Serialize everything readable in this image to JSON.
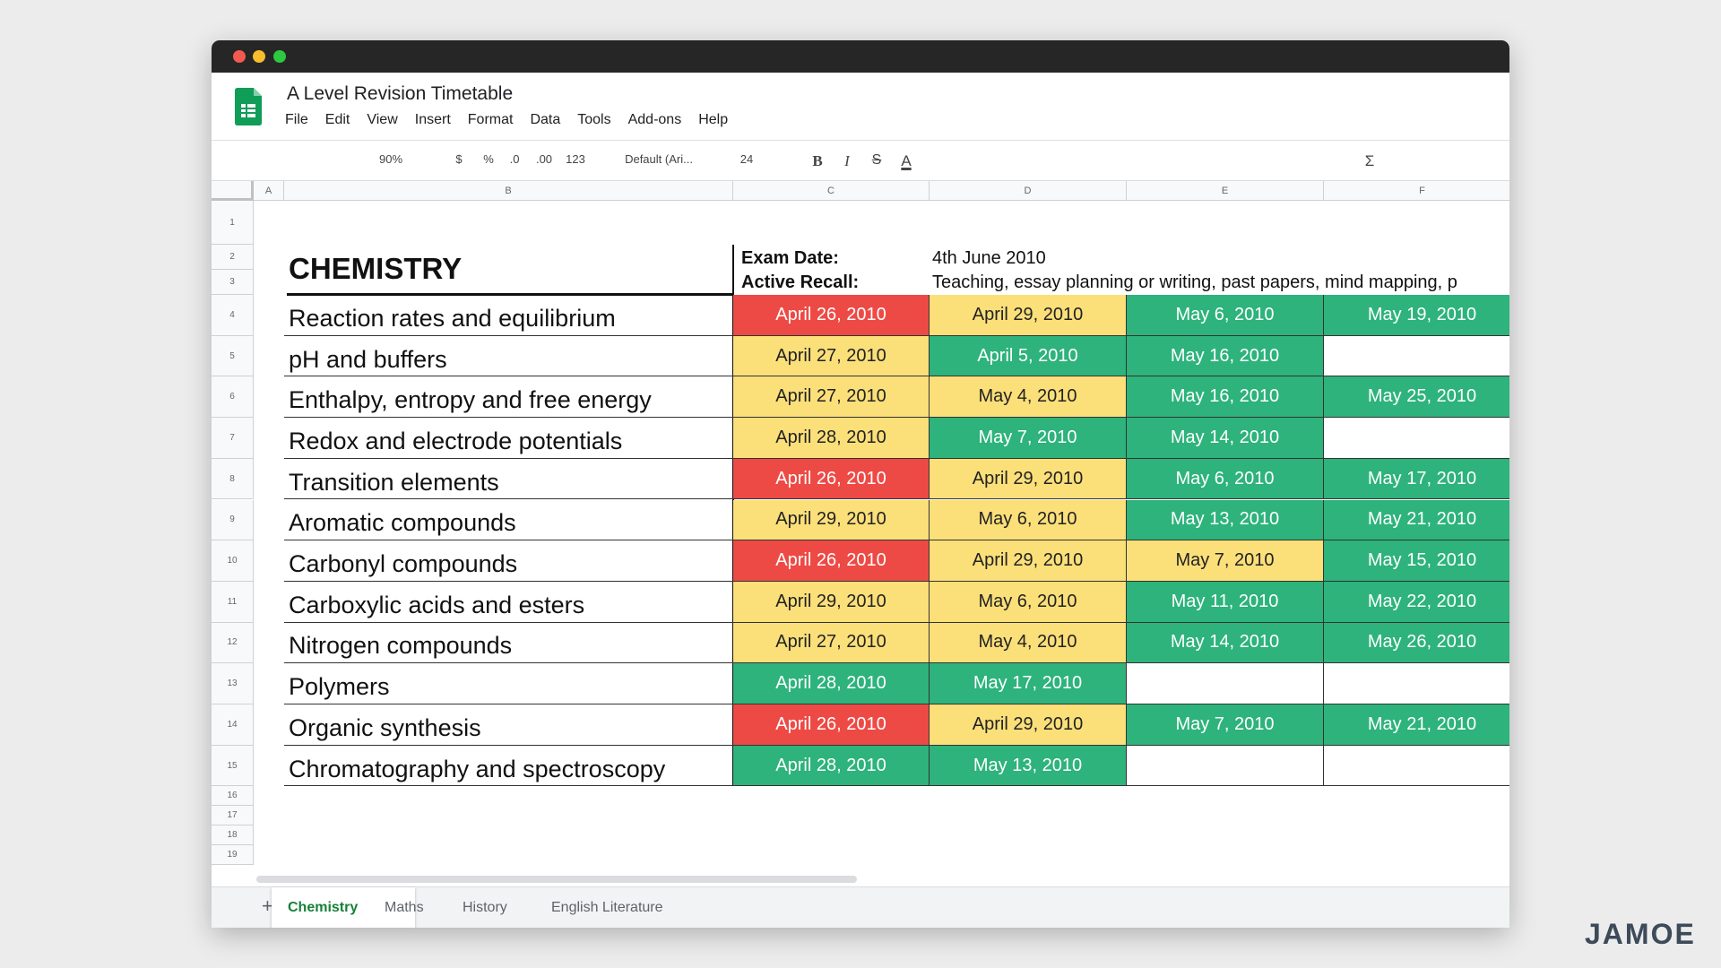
{
  "window": {
    "title": "A Level Revision Timetable",
    "menu": [
      "File",
      "Edit",
      "View",
      "Insert",
      "Format",
      "Data",
      "Tools",
      "Add-ons",
      "Help"
    ],
    "toolbar": [
      "90%",
      "$",
      "%",
      ".0",
      ".00",
      "123",
      "Default (Ari...",
      "24",
      "B",
      "I",
      "S",
      "A",
      "Σ"
    ]
  },
  "sheet": {
    "columns": [
      "A",
      "B",
      "C",
      "D",
      "E",
      "F"
    ],
    "row_numbers": [
      1,
      2,
      3,
      4,
      5,
      6,
      7,
      8,
      9,
      10,
      11,
      12,
      13,
      14,
      15,
      16,
      17,
      18,
      19
    ],
    "heading": "CHEMISTRY",
    "exam_date_label": "Exam Date:",
    "exam_date": "4th June 2010",
    "active_recall_label": "Active Recall:",
    "active_recall": "Teaching, essay planning or writing, past papers, mind mapping, p",
    "topics": [
      {
        "name": "Reaction rates and equilibrium",
        "sessions": [
          {
            "date": "April 26, 2010",
            "color": "#ee4a45"
          },
          {
            "date": "April 29, 2010",
            "color": "#fbdf79"
          },
          {
            "date": "May 6, 2010",
            "color": "#2db37b"
          },
          {
            "date": "May 19, 2010",
            "color": "#2db37b"
          }
        ]
      },
      {
        "name": "pH and buffers",
        "sessions": [
          {
            "date": "April 27, 2010",
            "color": "#fbdf79"
          },
          {
            "date": "April 5, 2010",
            "color": "#2db37b"
          },
          {
            "date": "May 16, 2010",
            "color": "#2db37b"
          }
        ]
      },
      {
        "name": "Enthalpy, entropy and free energy",
        "sessions": [
          {
            "date": "April 27, 2010",
            "color": "#fbdf79"
          },
          {
            "date": "May 4, 2010",
            "color": "#fbdf79"
          },
          {
            "date": "May 16, 2010",
            "color": "#2db37b"
          },
          {
            "date": "May 25, 2010",
            "color": "#2db37b"
          }
        ]
      },
      {
        "name": "Redox and electrode potentials",
        "sessions": [
          {
            "date": "April 28, 2010",
            "color": "#fbdf79"
          },
          {
            "date": "May 7, 2010",
            "color": "#2db37b"
          },
          {
            "date": "May 14, 2010",
            "color": "#2db37b"
          }
        ]
      },
      {
        "name": "Transition elements",
        "sessions": [
          {
            "date": "April 26, 2010",
            "color": "#ee4a45"
          },
          {
            "date": "April 29, 2010",
            "color": "#fbdf79"
          },
          {
            "date": "May 6, 2010",
            "color": "#2db37b"
          },
          {
            "date": "May 17, 2010",
            "color": "#2db37b"
          }
        ]
      },
      {
        "name": "Aromatic compounds",
        "sessions": [
          {
            "date": "April 29, 2010",
            "color": "#fbdf79"
          },
          {
            "date": "May 6, 2010",
            "color": "#fbdf79"
          },
          {
            "date": "May 13, 2010",
            "color": "#2db37b"
          },
          {
            "date": "May 21, 2010",
            "color": "#2db37b"
          }
        ]
      },
      {
        "name": "Carbonyl compounds",
        "sessions": [
          {
            "date": "April 26, 2010",
            "color": "#ee4a45"
          },
          {
            "date": "April 29, 2010",
            "color": "#fbdf79"
          },
          {
            "date": "May 7, 2010",
            "color": "#fbdf79"
          },
          {
            "date": "May 15, 2010",
            "color": "#2db37b"
          }
        ]
      },
      {
        "name": "Carboxylic acids and esters",
        "sessions": [
          {
            "date": "April 29, 2010",
            "color": "#fbdf79"
          },
          {
            "date": "May 6, 2010",
            "color": "#fbdf79"
          },
          {
            "date": "May 11, 2010",
            "color": "#2db37b"
          },
          {
            "date": "May 22, 2010",
            "color": "#2db37b"
          }
        ]
      },
      {
        "name": "Nitrogen compounds",
        "sessions": [
          {
            "date": "April 27, 2010",
            "color": "#fbdf79"
          },
          {
            "date": "May 4, 2010",
            "color": "#fbdf79"
          },
          {
            "date": "May 14, 2010",
            "color": "#2db37b"
          },
          {
            "date": "May 26, 2010",
            "color": "#2db37b"
          }
        ]
      },
      {
        "name": "Polymers",
        "sessions": [
          {
            "date": "April 28, 2010",
            "color": "#2db37b"
          },
          {
            "date": "May 17, 2010",
            "color": "#2db37b"
          }
        ]
      },
      {
        "name": "Organic synthesis",
        "sessions": [
          {
            "date": "April 26, 2010",
            "color": "#ee4a45"
          },
          {
            "date": "April 29, 2010",
            "color": "#fbdf79"
          },
          {
            "date": "May 7, 2010",
            "color": "#2db37b"
          },
          {
            "date": "May 21, 2010",
            "color": "#2db37b"
          }
        ]
      },
      {
        "name": "Chromatography and spectroscopy",
        "sessions": [
          {
            "date": "April 28, 2010",
            "color": "#2db37b"
          },
          {
            "date": "May 13, 2010",
            "color": "#2db37b"
          }
        ]
      }
    ]
  },
  "tabs": [
    {
      "label": "Chemistry",
      "active": true
    },
    {
      "label": "Maths",
      "active": false
    },
    {
      "label": "History",
      "active": false
    },
    {
      "label": "English Literature",
      "active": false
    }
  ],
  "watermark": "JAMOE"
}
